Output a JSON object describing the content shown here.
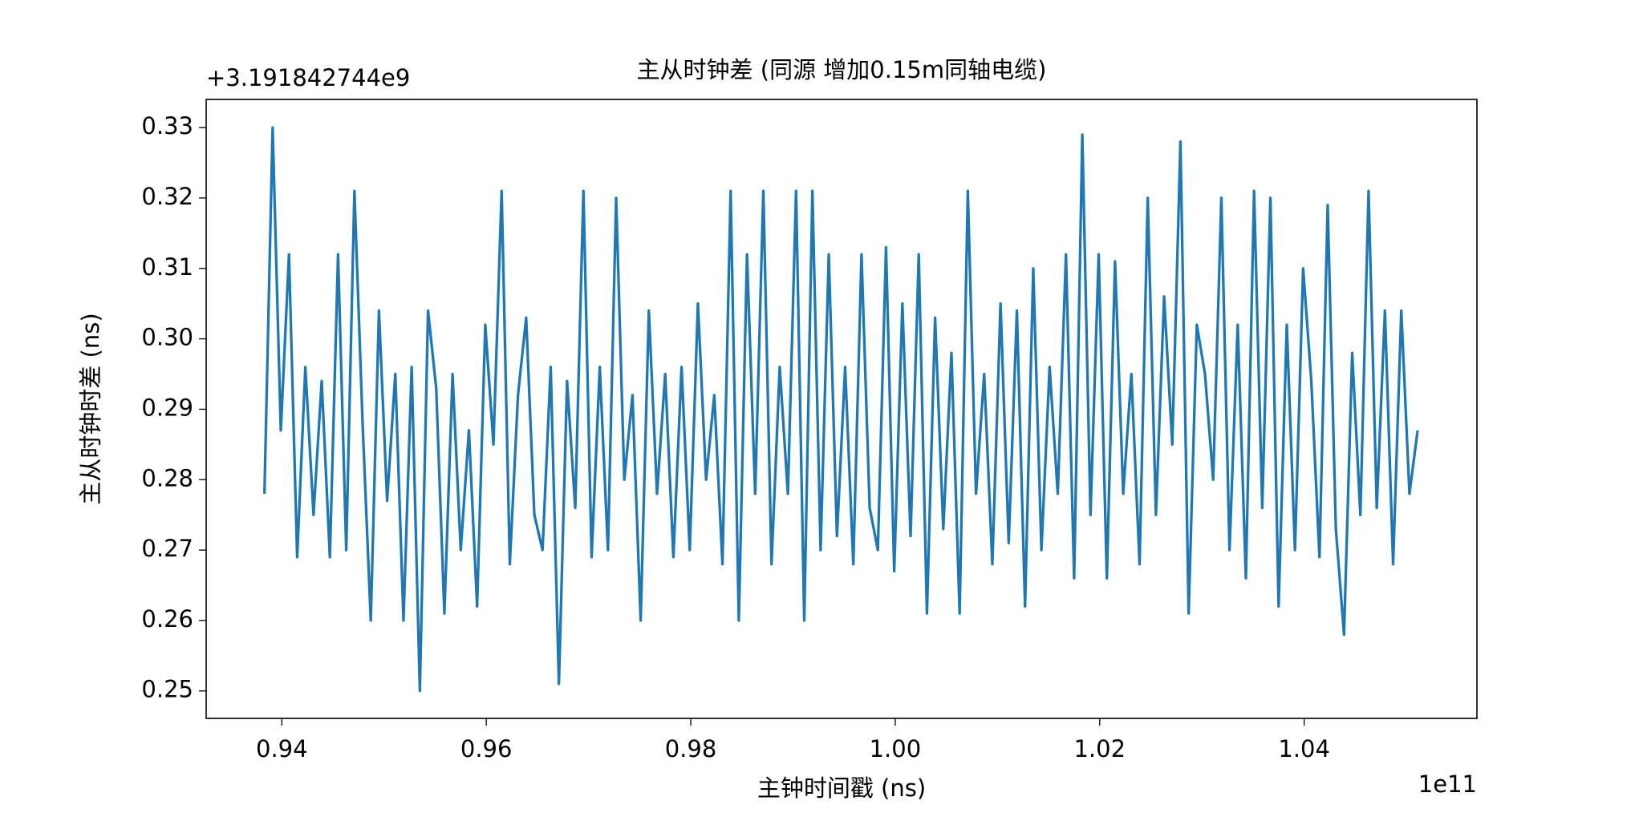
{
  "chart_data": {
    "type": "line",
    "title": "主从时钟差 (同源 增加0.15m同轴电缆)",
    "x_label": "主钟时间戳 (ns)",
    "y_label": "主从时钟时差 (ns)",
    "x_offset_text": "1e11",
    "y_offset_text": "+3.191842744e9",
    "x": [
      0.9383,
      0.9391,
      0.9399,
      0.9407,
      0.9415,
      0.9423,
      0.9431,
      0.9439,
      0.9447,
      0.9455,
      0.9463,
      0.9471,
      0.9479,
      0.9487,
      0.9495,
      0.9503,
      0.9511,
      0.9519,
      0.9527,
      0.9535,
      0.9543,
      0.9551,
      0.9559,
      0.9567,
      0.9575,
      0.9583,
      0.9591,
      0.9599,
      0.9607,
      0.9615,
      0.9623,
      0.9631,
      0.9639,
      0.9647,
      0.9655,
      0.9663,
      0.9671,
      0.9679,
      0.9687,
      0.9695,
      0.9703,
      0.9711,
      0.9719,
      0.9727,
      0.9735,
      0.9743,
      0.9751,
      0.9759,
      0.9767,
      0.9775,
      0.9783,
      0.9791,
      0.9799,
      0.9807,
      0.9815,
      0.9823,
      0.9831,
      0.9839,
      0.9847,
      0.9855,
      0.9863,
      0.9871,
      0.9879,
      0.9887,
      0.9895,
      0.9903,
      0.9911,
      0.9919,
      0.9927,
      0.9935,
      0.9943,
      0.9951,
      0.9959,
      0.9967,
      0.9975,
      0.9983,
      0.9991,
      0.9999,
      1.0007,
      1.0015,
      1.0023,
      1.0031,
      1.0039,
      1.0047,
      1.0055,
      1.0063,
      1.0071,
      1.0079,
      1.0087,
      1.0095,
      1.0103,
      1.0111,
      1.0119,
      1.0127,
      1.0135,
      1.0143,
      1.0151,
      1.0159,
      1.0167,
      1.0175,
      1.0183,
      1.0191,
      1.0199,
      1.0207,
      1.0215,
      1.0223,
      1.0231,
      1.0239,
      1.0247,
      1.0255,
      1.0263,
      1.0271,
      1.0279,
      1.0287,
      1.0295,
      1.0303,
      1.0311,
      1.0319,
      1.0327,
      1.0335,
      1.0343,
      1.0351,
      1.0359,
      1.0367,
      1.0375,
      1.0383,
      1.0391,
      1.0399,
      1.0407,
      1.0415,
      1.0423,
      1.0431,
      1.0439,
      1.0447,
      1.0455,
      1.0463,
      1.0471,
      1.0479,
      1.0487,
      1.0495,
      1.0503,
      1.0511
    ],
    "series": [
      {
        "color": "#1f77b4",
        "values": [
          0.278,
          0.33,
          0.287,
          0.312,
          0.269,
          0.296,
          0.275,
          0.294,
          0.269,
          0.312,
          0.27,
          0.321,
          0.288,
          0.26,
          0.304,
          0.277,
          0.295,
          0.26,
          0.296,
          0.25,
          0.304,
          0.293,
          0.261,
          0.295,
          0.27,
          0.287,
          0.262,
          0.302,
          0.285,
          0.321,
          0.268,
          0.292,
          0.303,
          0.275,
          0.27,
          0.296,
          0.251,
          0.294,
          0.276,
          0.321,
          0.269,
          0.296,
          0.27,
          0.32,
          0.28,
          0.292,
          0.26,
          0.304,
          0.278,
          0.295,
          0.269,
          0.296,
          0.27,
          0.305,
          0.28,
          0.292,
          0.268,
          0.321,
          0.26,
          0.312,
          0.278,
          0.321,
          0.268,
          0.296,
          0.278,
          0.321,
          0.26,
          0.321,
          0.27,
          0.312,
          0.272,
          0.296,
          0.268,
          0.312,
          0.276,
          0.27,
          0.313,
          0.267,
          0.305,
          0.272,
          0.312,
          0.261,
          0.303,
          0.273,
          0.298,
          0.261,
          0.321,
          0.278,
          0.295,
          0.268,
          0.305,
          0.271,
          0.304,
          0.262,
          0.31,
          0.27,
          0.296,
          0.278,
          0.312,
          0.266,
          0.329,
          0.275,
          0.312,
          0.266,
          0.311,
          0.278,
          0.295,
          0.268,
          0.32,
          0.275,
          0.306,
          0.285,
          0.328,
          0.261,
          0.302,
          0.295,
          0.28,
          0.32,
          0.27,
          0.302,
          0.266,
          0.321,
          0.276,
          0.32,
          0.262,
          0.302,
          0.27,
          0.31,
          0.294,
          0.269,
          0.319,
          0.273,
          0.258,
          0.298,
          0.275,
          0.321,
          0.276,
          0.304,
          0.268,
          0.304,
          0.278,
          0.287
        ]
      }
    ],
    "xlim": [
      0.9326,
      1.0569
    ],
    "ylim": [
      0.2461,
      0.334
    ],
    "xticks": [
      0.94,
      0.96,
      0.98,
      {
        "value": 1,
        "label": "1.00"
      },
      1.02,
      1.04
    ],
    "yticks": [
      0.25,
      0.26,
      0.27,
      0.28,
      0.29,
      {
        "value": 0.3,
        "label": "0.30"
      },
      0.31,
      0.32,
      0.33
    ]
  }
}
